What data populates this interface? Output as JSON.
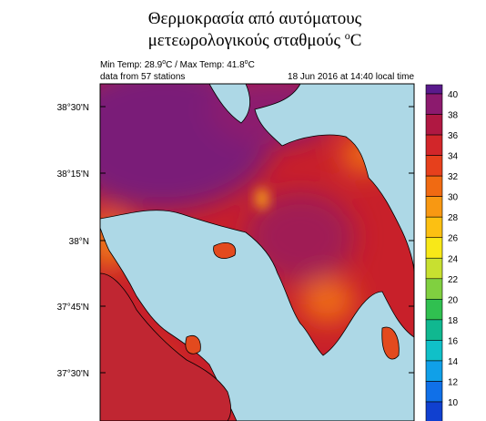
{
  "title": {
    "lines": [
      "Θερμοκρασία από αυτόματους",
      "μετεωρολογικούς σταθμούς"
    ],
    "unit_sup": "o",
    "unit": "C"
  },
  "info": {
    "min_label": "Min Temp:",
    "min": 28.9,
    "separator": "/ Max Temp:",
    "max": 41.8,
    "stations": "data from 57 stations",
    "timestamp": "18 Jun 2016 at 14:40 local time"
  },
  "map": {
    "lat_labels": [
      "38°30'N",
      "38°15'N",
      "38°N",
      "37°45'N",
      "37°30'N"
    ],
    "land_color": "#c8202a",
    "sea_color": "#add8e6"
  },
  "colorbar": {
    "levels": [
      40,
      38,
      36,
      34,
      32,
      30,
      28,
      26,
      24,
      22,
      20,
      18,
      16,
      14,
      12,
      10
    ],
    "colors": [
      "#5a1a8c",
      "#8c1a6e",
      "#b01842",
      "#d2262a",
      "#e6401c",
      "#f06a12",
      "#f89812",
      "#fcc012",
      "#f8e818",
      "#c8e030",
      "#80d040",
      "#30c050",
      "#10b890",
      "#10c0c8",
      "#10a0e8",
      "#1070e8",
      "#1040d0"
    ]
  }
}
